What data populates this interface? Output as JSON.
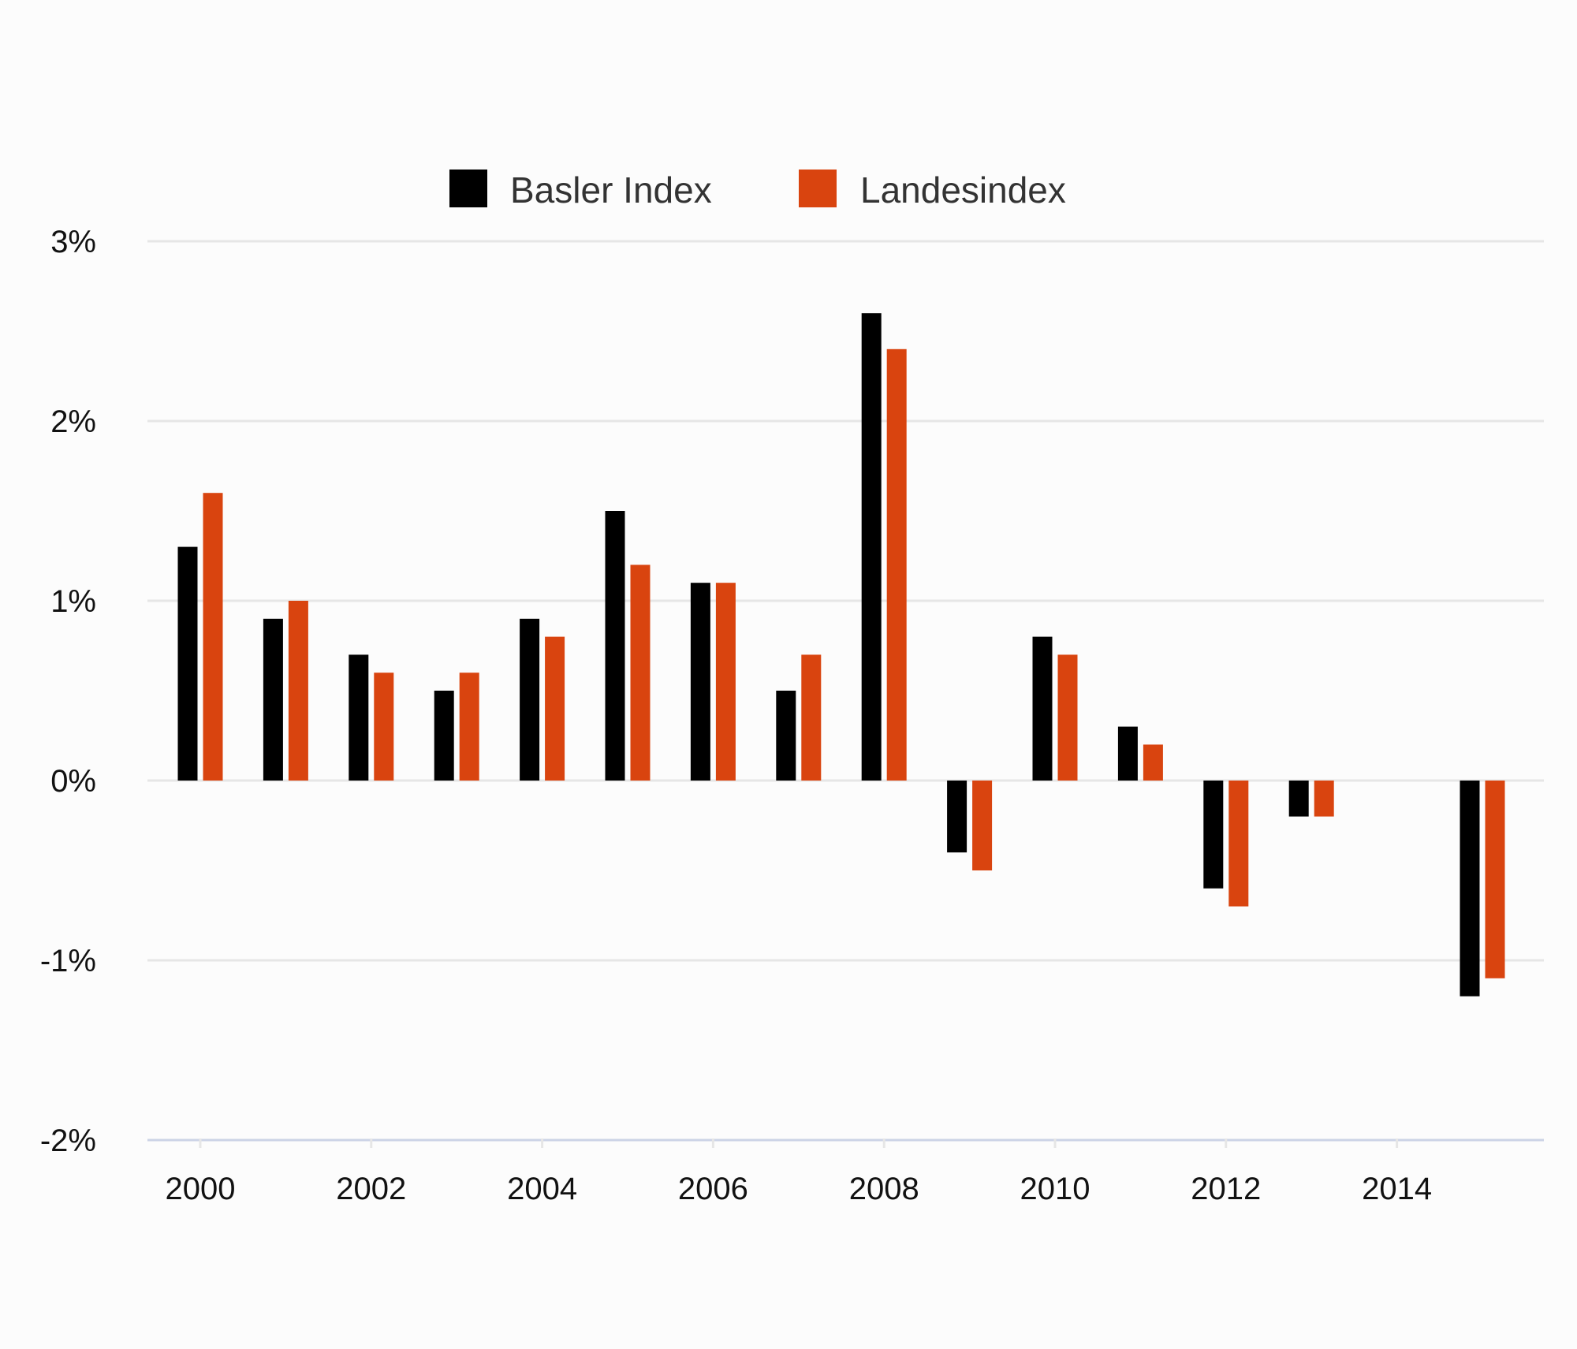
{
  "chart_data": {
    "type": "bar",
    "x": [
      2000,
      2001,
      2002,
      2003,
      2004,
      2005,
      2006,
      2007,
      2008,
      2009,
      2010,
      2011,
      2012,
      2013,
      2014,
      2015
    ],
    "series": [
      {
        "name": "Basler Index",
        "color": "#000000",
        "values": [
          1.3,
          0.9,
          0.7,
          0.5,
          0.9,
          1.5,
          1.1,
          0.5,
          2.6,
          -0.4,
          0.8,
          0.3,
          -0.6,
          -0.2,
          null,
          -1.2
        ]
      },
      {
        "name": "Landesindex",
        "color": "#d9440f",
        "values": [
          1.6,
          1.0,
          0.6,
          0.6,
          0.8,
          1.2,
          1.1,
          0.7,
          2.4,
          -0.5,
          0.7,
          0.2,
          -0.7,
          -0.2,
          null,
          -1.1
        ]
      }
    ],
    "ylim": [
      -2,
      3
    ],
    "yticks": [
      3,
      2,
      1,
      0,
      -1,
      -2
    ],
    "ytick_labels": [
      "3%",
      "2%",
      "1%",
      "0%",
      "-1%",
      "-2%"
    ],
    "xticks": [
      2000,
      2002,
      2004,
      2006,
      2008,
      2010,
      2012,
      2014
    ],
    "xtick_labels": [
      "2000",
      "2002",
      "2004",
      "2006",
      "2008",
      "2010",
      "2012",
      "2014"
    ],
    "grid": true,
    "legend_position": "top-center",
    "colors": {
      "background": "#fcfcfc",
      "grid": "#e6e6e6",
      "axis": "#ccd3e6",
      "text": "#111111",
      "legend_text": "#333333"
    }
  }
}
